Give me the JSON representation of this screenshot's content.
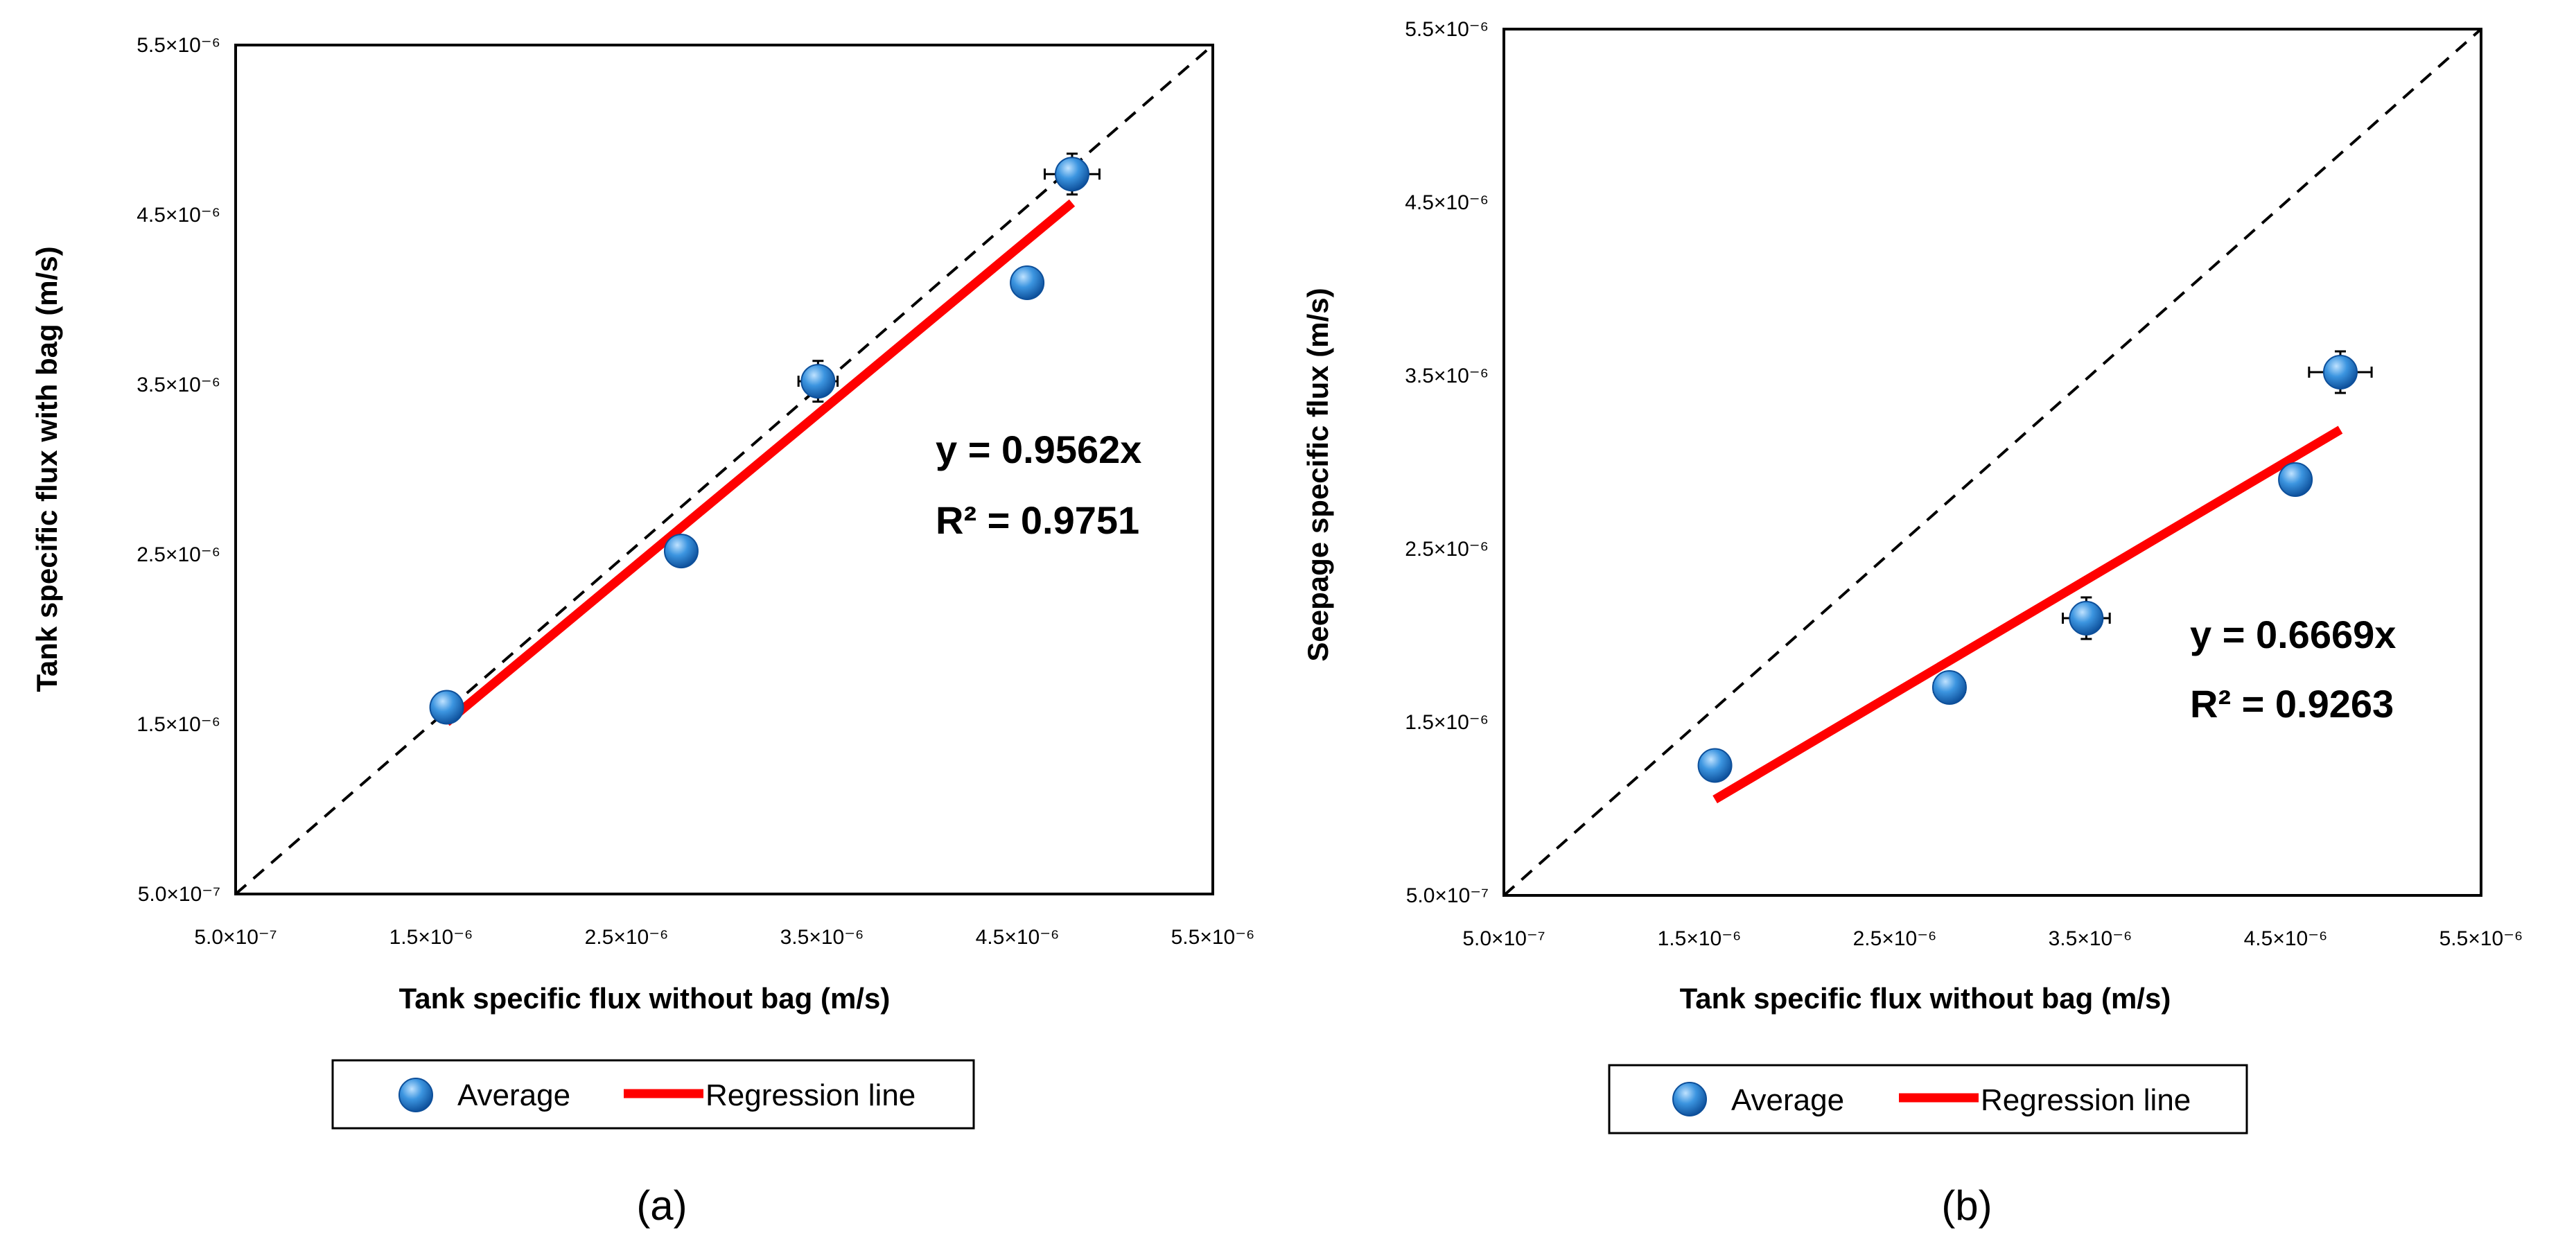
{
  "chart_data": [
    {
      "type": "scatter",
      "panel_label": "(a)",
      "title": "",
      "xlabel": "Tank specific flux without bag (m/s)",
      "ylabel": "Tank specific flux with bag (m/s)",
      "xlim": [
        5e-07,
        5.5e-06
      ],
      "ylim": [
        5e-07,
        5.5e-06
      ],
      "xtick_labels": [
        "5.0×10⁻⁷",
        "1.5×10⁻⁶",
        "2.5×10⁻⁶",
        "3.5×10⁻⁶",
        "4.5×10⁻⁶",
        "5.5×10⁻⁶"
      ],
      "ytick_labels": [
        "5.0×10⁻⁷",
        "1.5×10⁻⁶",
        "2.5×10⁻⁶",
        "3.5×10⁻⁶",
        "4.5×10⁻⁶",
        "5.5×10⁻⁶"
      ],
      "series": [
        {
          "name": "Average",
          "color": "#2e86d6",
          "x": [
            1.58e-06,
            2.78e-06,
            3.48e-06,
            4.55e-06,
            4.78e-06
          ],
          "y": [
            1.6e-06,
            2.52e-06,
            3.52e-06,
            4.1e-06,
            4.74e-06
          ],
          "xerr": [
            2e-08,
            6e-08,
            1e-07,
            2e-08,
            1.4e-07
          ],
          "yerr": [
            5e-08,
            8e-08,
            1.2e-07,
            3e-08,
            1.2e-07
          ]
        }
      ],
      "regression": {
        "name": "Regression line",
        "color": "#ff0000",
        "slope": 0.9562,
        "x_range": [
          1.58e-06,
          4.78e-06
        ]
      },
      "reference_line": {
        "style": "dashed",
        "slope": 1
      },
      "equation": "y  =  0.9562x",
      "r_squared": "R²  =  0.9751",
      "legend": [
        "Average",
        "Regression line"
      ],
      "legend_position": "bottom-center"
    },
    {
      "type": "scatter",
      "panel_label": "(b)",
      "title": "",
      "xlabel": "Tank specific flux without bag (m/s)",
      "ylabel": "Seepage specific flux (m/s)",
      "xlim": [
        5e-07,
        5.5e-06
      ],
      "ylim": [
        5e-07,
        5.5e-06
      ],
      "xtick_labels": [
        "5.0×10⁻⁷",
        "1.5×10⁻⁶",
        "2.5×10⁻⁶",
        "3.5×10⁻⁶",
        "4.5×10⁻⁶",
        "5.5×10⁻⁶"
      ],
      "ytick_labels": [
        "5.0×10⁻⁷",
        "1.5×10⁻⁶",
        "2.5×10⁻⁶",
        "3.5×10⁻⁶",
        "4.5×10⁻⁶",
        "5.5×10⁻⁶"
      ],
      "series": [
        {
          "name": "Average",
          "color": "#2e86d6",
          "x": [
            1.58e-06,
            2.78e-06,
            3.48e-06,
            4.55e-06,
            4.78e-06
          ],
          "y": [
            1.25e-06,
            1.7e-06,
            2.1e-06,
            2.9e-06,
            3.52e-06
          ],
          "xerr": [
            2e-08,
            8e-08,
            1.2e-07,
            2e-08,
            1.6e-07
          ],
          "yerr": [
            3e-08,
            8e-08,
            1.2e-07,
            4e-08,
            1.2e-07
          ]
        }
      ],
      "regression": {
        "name": "Regression line",
        "color": "#ff0000",
        "slope": 0.6669,
        "x_range": [
          1.58e-06,
          4.78e-06
        ]
      },
      "reference_line": {
        "style": "dashed",
        "slope": 1
      },
      "equation": "y  =  0.6669x",
      "r_squared": "R²  =  0.9263",
      "legend": [
        "Average",
        "Regression line"
      ],
      "legend_position": "bottom-center"
    }
  ]
}
